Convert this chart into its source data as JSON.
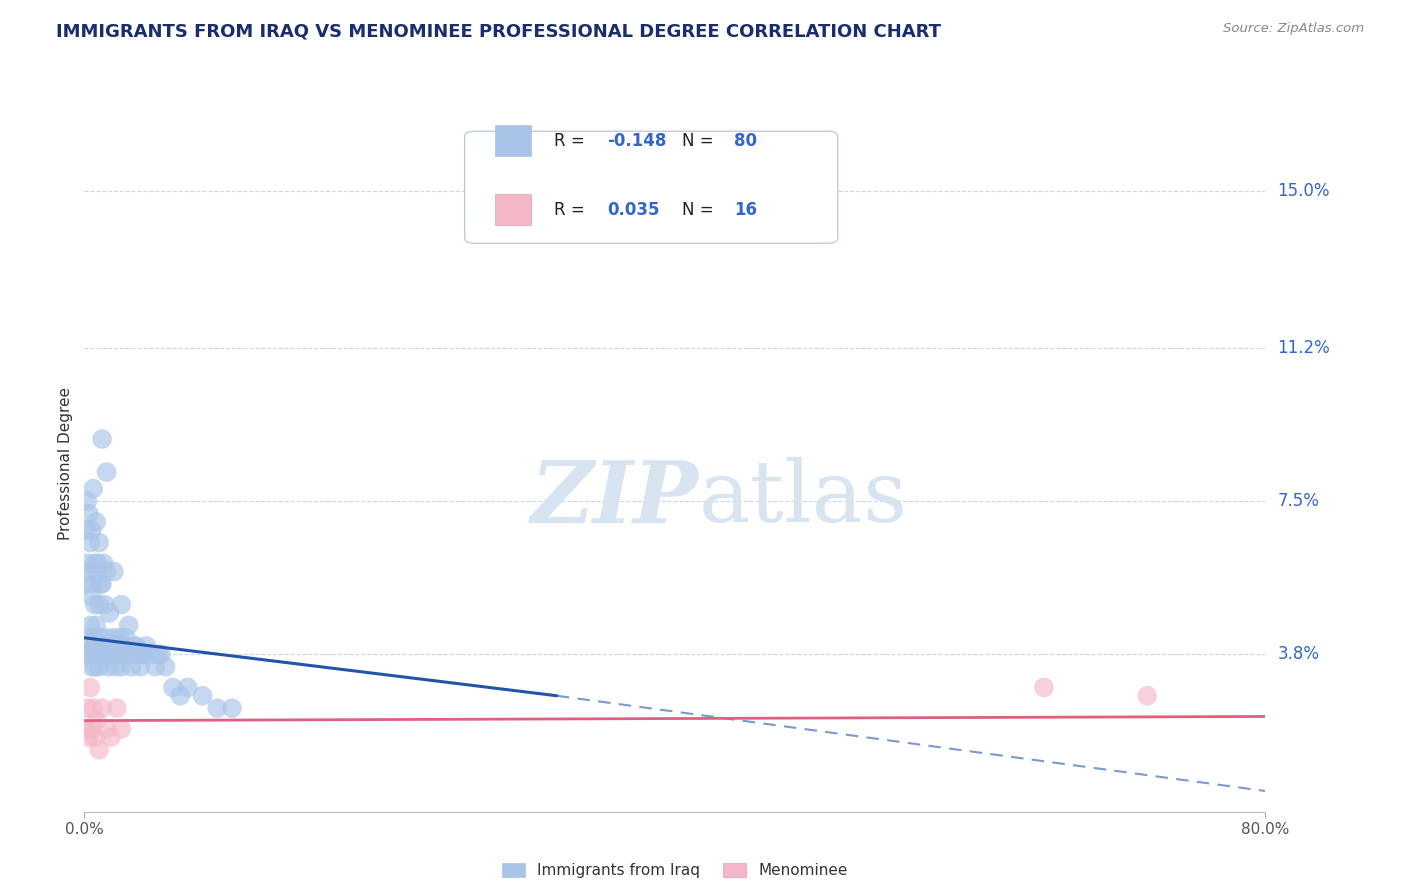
{
  "title": "IMMIGRANTS FROM IRAQ VS MENOMINEE PROFESSIONAL DEGREE CORRELATION CHART",
  "source": "Source: ZipAtlas.com",
  "ylabel": "Professional Degree",
  "legend_label_blue": "Immigrants from Iraq",
  "legend_label_pink": "Menominee",
  "R_blue": -0.148,
  "N_blue": 80,
  "R_pink": 0.035,
  "N_pink": 16,
  "xlim": [
    0.0,
    0.8
  ],
  "ylim": [
    0.0,
    0.168
  ],
  "ytick_vals": [
    0.038,
    0.075,
    0.112,
    0.15
  ],
  "ytick_labels": [
    "3.8%",
    "7.5%",
    "11.2%",
    "15.0%"
  ],
  "xticks": [
    0.0,
    0.8
  ],
  "xtick_labels": [
    "0.0%",
    "80.0%"
  ],
  "color_blue": "#a8c4e8",
  "color_pink": "#f5b8c8",
  "color_blue_line": "#2255aa",
  "color_pink_line": "#e06080",
  "grid_color": "#c8d8e8",
  "title_color": "#1a2e6e",
  "axis_val_color": "#3366cc",
  "label_color": "#333333",
  "source_color": "#888888",
  "watermark_color": "#d5e2f0",
  "background": "#ffffff",
  "legend_text_r_color": "#222222",
  "legend_text_val_color": "#3366cc",
  "blue_line_x0": 0.0,
  "blue_line_y0": 0.042,
  "blue_line_x_solid_end": 0.32,
  "blue_line_y_solid_end": 0.028,
  "blue_line_x_dash_end": 0.8,
  "blue_line_y_dash_end": 0.005,
  "pink_line_x0": 0.0,
  "pink_line_y0": 0.022,
  "pink_line_x1": 0.8,
  "pink_line_y1": 0.023,
  "blue_pts_x": [
    0.001,
    0.001,
    0.001,
    0.002,
    0.002,
    0.002,
    0.003,
    0.003,
    0.003,
    0.004,
    0.004,
    0.005,
    0.005,
    0.005,
    0.006,
    0.006,
    0.006,
    0.007,
    0.007,
    0.007,
    0.007,
    0.008,
    0.008,
    0.008,
    0.008,
    0.009,
    0.009,
    0.01,
    0.01,
    0.01,
    0.01,
    0.011,
    0.011,
    0.011,
    0.012,
    0.012,
    0.013,
    0.013,
    0.014,
    0.014,
    0.015,
    0.015,
    0.016,
    0.017,
    0.018,
    0.019,
    0.02,
    0.021,
    0.022,
    0.023,
    0.024,
    0.025,
    0.026,
    0.027,
    0.028,
    0.03,
    0.032,
    0.034,
    0.036,
    0.038,
    0.04,
    0.042,
    0.045,
    0.048,
    0.052,
    0.055,
    0.06,
    0.065,
    0.07,
    0.08,
    0.09,
    0.1,
    0.012,
    0.015,
    0.02,
    0.025,
    0.03,
    0.035,
    0.04,
    0.05
  ],
  "blue_pts_y": [
    0.038,
    0.055,
    0.068,
    0.042,
    0.06,
    0.075,
    0.038,
    0.058,
    0.072,
    0.045,
    0.065,
    0.035,
    0.052,
    0.068,
    0.04,
    0.055,
    0.078,
    0.042,
    0.06,
    0.035,
    0.05,
    0.038,
    0.058,
    0.045,
    0.07,
    0.04,
    0.06,
    0.035,
    0.05,
    0.04,
    0.065,
    0.038,
    0.055,
    0.042,
    0.038,
    0.055,
    0.04,
    0.06,
    0.038,
    0.05,
    0.042,
    0.058,
    0.035,
    0.048,
    0.04,
    0.038,
    0.042,
    0.035,
    0.04,
    0.038,
    0.042,
    0.035,
    0.04,
    0.038,
    0.042,
    0.038,
    0.035,
    0.04,
    0.038,
    0.035,
    0.038,
    0.04,
    0.038,
    0.035,
    0.038,
    0.035,
    0.03,
    0.028,
    0.03,
    0.028,
    0.025,
    0.025,
    0.09,
    0.082,
    0.058,
    0.05,
    0.045,
    0.04,
    0.038,
    0.038
  ],
  "pink_pts_x": [
    0.001,
    0.002,
    0.003,
    0.004,
    0.005,
    0.006,
    0.007,
    0.008,
    0.01,
    0.012,
    0.015,
    0.018,
    0.022,
    0.025,
    0.65,
    0.72
  ],
  "pink_pts_y": [
    0.02,
    0.025,
    0.018,
    0.03,
    0.02,
    0.025,
    0.018,
    0.022,
    0.015,
    0.025,
    0.02,
    0.018,
    0.025,
    0.02,
    0.03,
    0.028
  ]
}
